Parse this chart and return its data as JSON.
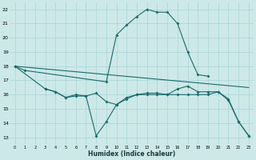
{
  "bg_color": "#cde8e8",
  "line_color": "#1a6b6b",
  "xlabel": "Humidex (Indice chaleur)",
  "xlim": [
    -0.5,
    23.5
  ],
  "ylim": [
    12.5,
    22.5
  ],
  "yticks": [
    13,
    14,
    15,
    16,
    17,
    18,
    19,
    20,
    21,
    22
  ],
  "xticks": [
    0,
    1,
    2,
    3,
    4,
    5,
    6,
    7,
    8,
    9,
    10,
    11,
    12,
    13,
    14,
    15,
    16,
    17,
    18,
    19,
    20,
    21,
    22,
    23
  ],
  "curve1_x": [
    0,
    1,
    9,
    10,
    11,
    12,
    13,
    14,
    15,
    16,
    17,
    18,
    19
  ],
  "curve1_y": [
    18.0,
    17.7,
    16.9,
    20.2,
    20.9,
    21.5,
    22.0,
    21.8,
    21.8,
    21.0,
    19.0,
    17.4,
    17.3
  ],
  "curve2_x": [
    3,
    4,
    5,
    6,
    7,
    8,
    9,
    10,
    11,
    12,
    13,
    14,
    15,
    16,
    17,
    18,
    19,
    20,
    21,
    22,
    23
  ],
  "curve2_y": [
    16.4,
    16.2,
    15.8,
    16.0,
    15.9,
    16.1,
    15.5,
    15.3,
    15.8,
    16.0,
    16.0,
    16.0,
    16.0,
    16.0,
    16.0,
    16.0,
    16.0,
    16.2,
    15.6,
    14.1,
    13.1
  ],
  "curve3_x": [
    0,
    3,
    4,
    5,
    6,
    7,
    8,
    9,
    10,
    11,
    12,
    13,
    14,
    15,
    16,
    17,
    18,
    19,
    20,
    21,
    22,
    23
  ],
  "curve3_y": [
    18.0,
    16.4,
    16.2,
    15.8,
    15.9,
    15.9,
    13.1,
    14.1,
    15.3,
    15.7,
    16.0,
    16.1,
    16.1,
    16.0,
    16.4,
    16.6,
    16.2,
    16.2,
    16.2,
    15.7,
    14.1,
    13.1
  ],
  "trend_x": [
    0,
    23
  ],
  "trend_y": [
    18.0,
    16.5
  ]
}
